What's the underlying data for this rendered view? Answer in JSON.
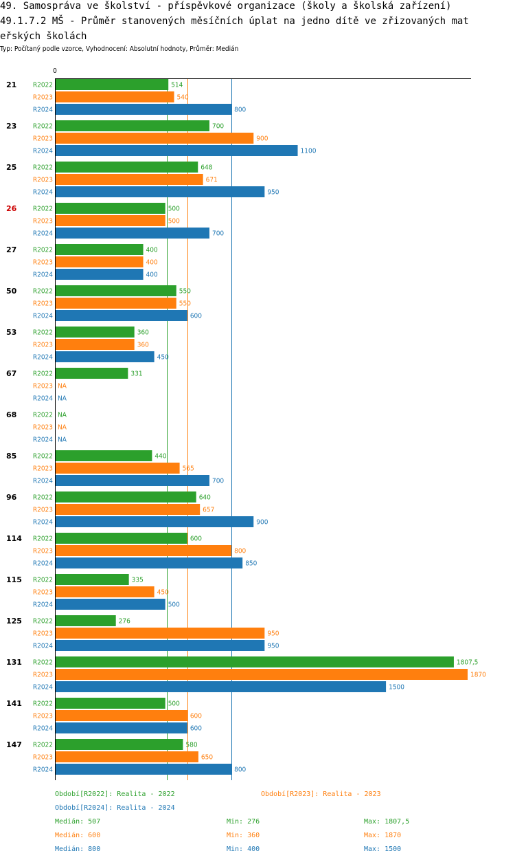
{
  "header": {
    "title_line1": "49. Samospráva ve školství - příspěvkové organizace (školy a školská zařízení)",
    "title_line2": "49.1.7.2 MŠ - Průměr stanovených měsíčních úplat na jedno dítě ve zřizovaných mat",
    "title_line3": "eřských školách",
    "subtitle": "Typ: Počítaný podle vzorce, Vyhodnocení: Absolutní hodnoty, Průměr: Medián"
  },
  "colors": {
    "R2022": "#2ca02c",
    "R2023": "#ff7f0e",
    "R2024": "#1f77b4",
    "highlight": "#cc0000",
    "text": "#000000"
  },
  "chart_data": {
    "type": "bar",
    "orientation": "horizontal",
    "axis_zero_label": "0",
    "xlim": [
      0,
      1870
    ],
    "highlight_group": "26",
    "series_names": [
      "R2022",
      "R2023",
      "R2024"
    ],
    "groups": [
      {
        "label": "21",
        "values": [
          514,
          540,
          800
        ],
        "labels": [
          "514",
          "540",
          "800"
        ]
      },
      {
        "label": "23",
        "values": [
          700,
          900,
          1100
        ],
        "labels": [
          "700",
          "900",
          "1100"
        ]
      },
      {
        "label": "25",
        "values": [
          648,
          671,
          950
        ],
        "labels": [
          "648",
          "671",
          "950"
        ]
      },
      {
        "label": "26",
        "values": [
          500,
          500,
          700
        ],
        "labels": [
          "500",
          "500",
          "700"
        ]
      },
      {
        "label": "27",
        "values": [
          400,
          400,
          400
        ],
        "labels": [
          "400",
          "400",
          "400"
        ]
      },
      {
        "label": "50",
        "values": [
          550,
          550,
          600
        ],
        "labels": [
          "550",
          "550",
          "600"
        ]
      },
      {
        "label": "53",
        "values": [
          360,
          360,
          450
        ],
        "labels": [
          "360",
          "360",
          "450"
        ]
      },
      {
        "label": "67",
        "values": [
          331,
          null,
          null
        ],
        "labels": [
          "331",
          "NA",
          "NA"
        ]
      },
      {
        "label": "68",
        "values": [
          null,
          null,
          null
        ],
        "labels": [
          "NA",
          "NA",
          "NA"
        ]
      },
      {
        "label": "85",
        "values": [
          440,
          565,
          700
        ],
        "labels": [
          "440",
          "565",
          "700"
        ]
      },
      {
        "label": "96",
        "values": [
          640,
          657,
          900
        ],
        "labels": [
          "640",
          "657",
          "900"
        ]
      },
      {
        "label": "114",
        "values": [
          600,
          800,
          850
        ],
        "labels": [
          "600",
          "800",
          "850"
        ]
      },
      {
        "label": "115",
        "values": [
          335,
          450,
          500
        ],
        "labels": [
          "335",
          "450",
          "500"
        ]
      },
      {
        "label": "125",
        "values": [
          276,
          950,
          950
        ],
        "labels": [
          "276",
          "950",
          "950"
        ]
      },
      {
        "label": "131",
        "values": [
          1807.5,
          1870,
          1500
        ],
        "labels": [
          "1807,5",
          "1870",
          "1500"
        ]
      },
      {
        "label": "141",
        "values": [
          500,
          600,
          600
        ],
        "labels": [
          "500",
          "600",
          "600"
        ]
      },
      {
        "label": "147",
        "values": [
          580,
          650,
          800
        ],
        "labels": [
          "580",
          "650",
          "800"
        ]
      }
    ],
    "reference_lines": [
      {
        "series": "R2022",
        "value": 507
      },
      {
        "series": "R2023",
        "value": 600
      },
      {
        "series": "R2024",
        "value": 800
      }
    ]
  },
  "legend": {
    "r2022": "Období[R2022]: Realita - 2022",
    "r2023": "Období[R2023]: Realita - 2023",
    "r2024": "Období[R2024]: Realita - 2024"
  },
  "stats": [
    {
      "median": "Medián: 507",
      "min": "Min: 276",
      "max": "Max: 1807,5"
    },
    {
      "median": "Medián: 600",
      "min": "Min: 360",
      "max": "Max: 1870"
    },
    {
      "median": "Medián: 800",
      "min": "Min: 400",
      "max": "Max: 1500"
    }
  ]
}
